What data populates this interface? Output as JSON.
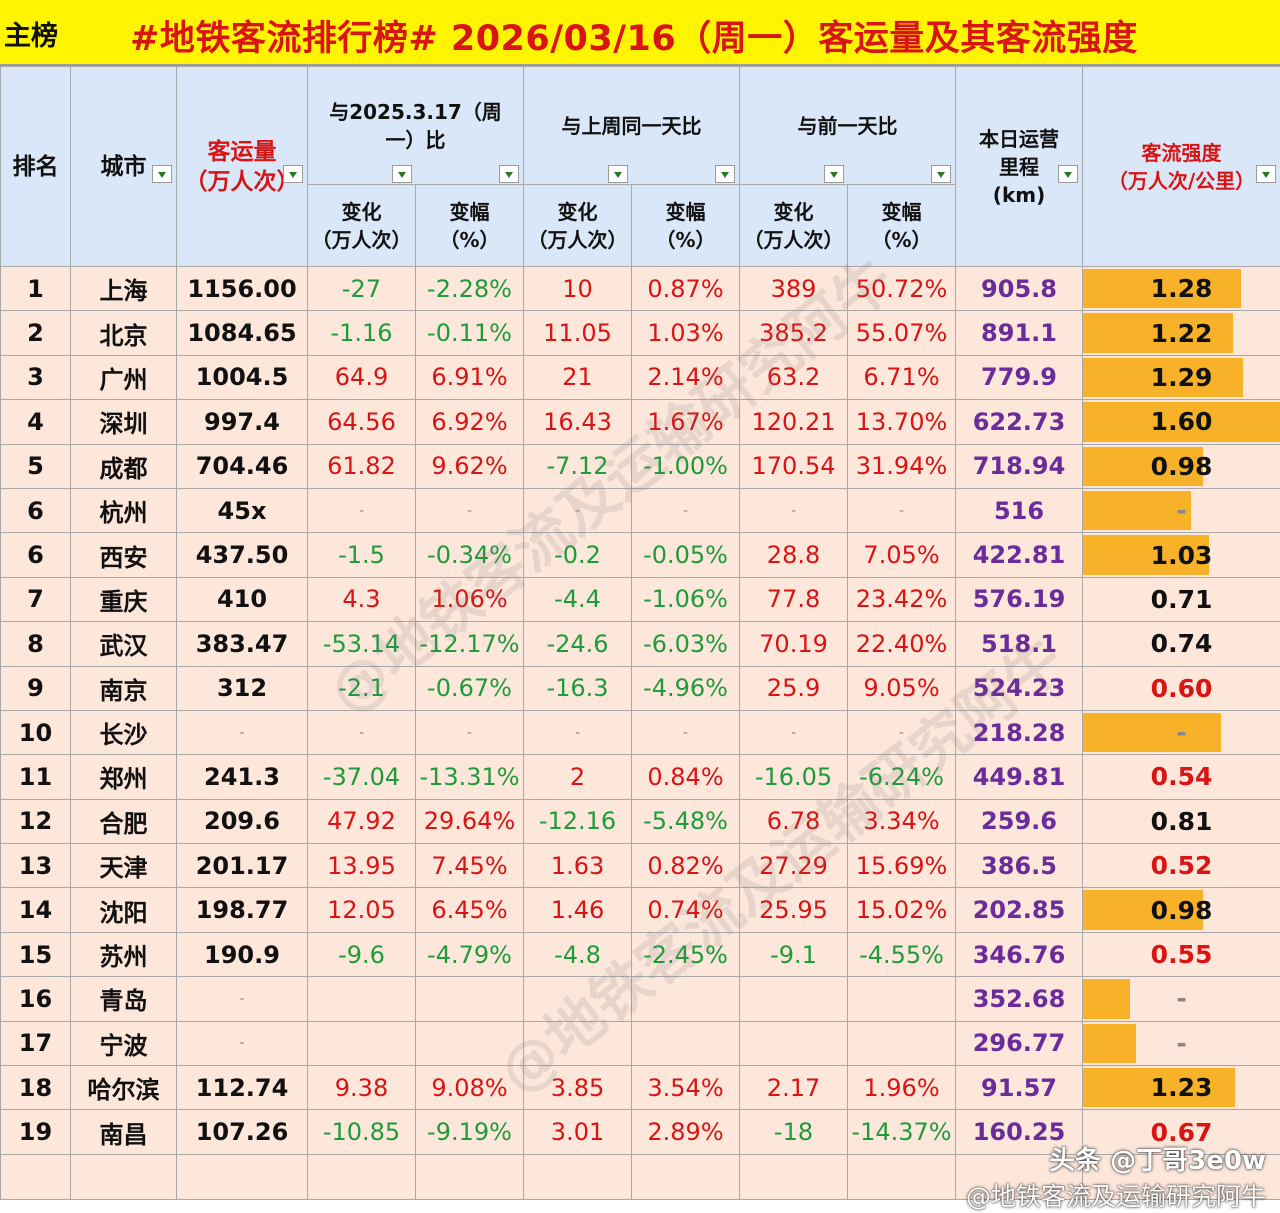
{
  "header": {
    "tag": "主榜",
    "title": "#地铁客流排行榜# 2026/03/16（周一）客运量及其客流强度"
  },
  "columns": {
    "rank": "排名",
    "city": "城市",
    "volume_line1": "客运量",
    "volume_line2": "（万人次）",
    "yoy_line1": "与2025.3.17（周",
    "yoy_line2": "一）比",
    "wow": "与上周同一天比",
    "dod": "与前一天比",
    "mileage_line1": "本日运营",
    "mileage_line2": "里程",
    "mileage_line3": "(km)",
    "intensity_line1": "客流强度",
    "intensity_line2": "（万人次/公里）",
    "change_line1": "变化",
    "change_line2": "（万人次）",
    "pct_line1": "变幅",
    "pct_line2": "（%）"
  },
  "colors": {
    "positive": "#d81414",
    "negative": "#1e9b3b",
    "bar": "#f8b22a",
    "mileage": "#6a2c9a",
    "header_bg": "#d9e7f8",
    "row_bg": "#fde6da",
    "title_bg": "#fff500"
  },
  "rows": [
    {
      "rank": "1",
      "city": "上海",
      "volume": "1156.00",
      "yoy_c": "-27",
      "yoy_p": "-2.28%",
      "wow_c": "10",
      "wow_p": "0.87%",
      "dod_c": "389",
      "dod_p": "50.72%",
      "km": "905.8",
      "intensity": "1.28",
      "bar": 0.8,
      "ired": false
    },
    {
      "rank": "2",
      "city": "北京",
      "volume": "1084.65",
      "yoy_c": "-1.16",
      "yoy_p": "-0.11%",
      "wow_c": "11.05",
      "wow_p": "1.03%",
      "dod_c": "385.2",
      "dod_p": "55.07%",
      "km": "891.1",
      "intensity": "1.22",
      "bar": 0.76,
      "ired": false
    },
    {
      "rank": "3",
      "city": "广州",
      "volume": "1004.5",
      "yoy_c": "64.9",
      "yoy_p": "6.91%",
      "wow_c": "21",
      "wow_p": "2.14%",
      "dod_c": "63.2",
      "dod_p": "6.71%",
      "km": "779.9",
      "intensity": "1.29",
      "bar": 0.81,
      "ired": false
    },
    {
      "rank": "4",
      "city": "深圳",
      "volume": "997.4",
      "yoy_c": "64.56",
      "yoy_p": "6.92%",
      "wow_c": "16.43",
      "wow_p": "1.67%",
      "dod_c": "120.21",
      "dod_p": "13.70%",
      "km": "622.73",
      "intensity": "1.60",
      "bar": 1.0,
      "ired": false
    },
    {
      "rank": "5",
      "city": "成都",
      "volume": "704.46",
      "yoy_c": "61.82",
      "yoy_p": "9.62%",
      "wow_c": "-7.12",
      "wow_p": "-1.00%",
      "dod_c": "170.54",
      "dod_p": "31.94%",
      "km": "718.94",
      "intensity": "0.98",
      "bar": 0.61,
      "ired": false
    },
    {
      "rank": "6",
      "city": "杭州",
      "volume": "45x",
      "yoy_c": "-",
      "yoy_p": "-",
      "wow_c": "-",
      "wow_p": "-",
      "dod_c": "-",
      "dod_p": "-",
      "km": "516",
      "intensity": "-",
      "bar": 0.55,
      "ired": false
    },
    {
      "rank": "6",
      "city": "西安",
      "volume": "437.50",
      "yoy_c": "-1.5",
      "yoy_p": "-0.34%",
      "wow_c": "-0.2",
      "wow_p": "-0.05%",
      "dod_c": "28.8",
      "dod_p": "7.05%",
      "km": "422.81",
      "intensity": "1.03",
      "bar": 0.64,
      "ired": false
    },
    {
      "rank": "7",
      "city": "重庆",
      "volume": "410",
      "yoy_c": "4.3",
      "yoy_p": "1.06%",
      "wow_c": "-4.4",
      "wow_p": "-1.06%",
      "dod_c": "77.8",
      "dod_p": "23.42%",
      "km": "576.19",
      "intensity": "0.71",
      "bar": 0.0,
      "ired": false
    },
    {
      "rank": "8",
      "city": "武汉",
      "volume": "383.47",
      "yoy_c": "-53.14",
      "yoy_p": "-12.17%",
      "wow_c": "-24.6",
      "wow_p": "-6.03%",
      "dod_c": "70.19",
      "dod_p": "22.40%",
      "km": "518.1",
      "intensity": "0.74",
      "bar": 0.0,
      "ired": false
    },
    {
      "rank": "9",
      "city": "南京",
      "volume": "312",
      "yoy_c": "-2.1",
      "yoy_p": "-0.67%",
      "wow_c": "-16.3",
      "wow_p": "-4.96%",
      "dod_c": "25.9",
      "dod_p": "9.05%",
      "km": "524.23",
      "intensity": "0.60",
      "bar": 0.0,
      "ired": true
    },
    {
      "rank": "10",
      "city": "长沙",
      "volume": "-",
      "yoy_c": "-",
      "yoy_p": "-",
      "wow_c": "-",
      "wow_p": "-",
      "dod_c": "-",
      "dod_p": "-",
      "km": "218.28",
      "intensity": "-",
      "bar": 0.7,
      "ired": false
    },
    {
      "rank": "11",
      "city": "郑州",
      "volume": "241.3",
      "yoy_c": "-37.04",
      "yoy_p": "-13.31%",
      "wow_c": "2",
      "wow_p": "0.84%",
      "dod_c": "-16.05",
      "dod_p": "-6.24%",
      "km": "449.81",
      "intensity": "0.54",
      "bar": 0.0,
      "ired": true
    },
    {
      "rank": "12",
      "city": "合肥",
      "volume": "209.6",
      "yoy_c": "47.92",
      "yoy_p": "29.64%",
      "wow_c": "-12.16",
      "wow_p": "-5.48%",
      "dod_c": "6.78",
      "dod_p": "3.34%",
      "km": "259.6",
      "intensity": "0.81",
      "bar": 0.0,
      "ired": false
    },
    {
      "rank": "13",
      "city": "天津",
      "volume": "201.17",
      "yoy_c": "13.95",
      "yoy_p": "7.45%",
      "wow_c": "1.63",
      "wow_p": "0.82%",
      "dod_c": "27.29",
      "dod_p": "15.69%",
      "km": "386.5",
      "intensity": "0.52",
      "bar": 0.0,
      "ired": true
    },
    {
      "rank": "14",
      "city": "沈阳",
      "volume": "198.77",
      "yoy_c": "12.05",
      "yoy_p": "6.45%",
      "wow_c": "1.46",
      "wow_p": "0.74%",
      "dod_c": "25.95",
      "dod_p": "15.02%",
      "km": "202.85",
      "intensity": "0.98",
      "bar": 0.61,
      "ired": false
    },
    {
      "rank": "15",
      "city": "苏州",
      "volume": "190.9",
      "yoy_c": "-9.6",
      "yoy_p": "-4.79%",
      "wow_c": "-4.8",
      "wow_p": "-2.45%",
      "dod_c": "-9.1",
      "dod_p": "-4.55%",
      "km": "346.76",
      "intensity": "0.55",
      "bar": 0.0,
      "ired": true
    },
    {
      "rank": "16",
      "city": "青岛",
      "volume": "-",
      "yoy_c": "",
      "yoy_p": "",
      "wow_c": "",
      "wow_p": "",
      "dod_c": "",
      "dod_p": "",
      "km": "352.68",
      "intensity": "-",
      "bar": 0.24,
      "ired": false
    },
    {
      "rank": "17",
      "city": "宁波",
      "volume": "-",
      "yoy_c": "",
      "yoy_p": "",
      "wow_c": "",
      "wow_p": "",
      "dod_c": "",
      "dod_p": "",
      "km": "296.77",
      "intensity": "-",
      "bar": 0.27,
      "ired": false
    },
    {
      "rank": "18",
      "city": "哈尔滨",
      "volume": "112.74",
      "yoy_c": "9.38",
      "yoy_p": "9.08%",
      "wow_c": "3.85",
      "wow_p": "3.54%",
      "dod_c": "2.17",
      "dod_p": "1.96%",
      "km": "91.57",
      "intensity": "1.23",
      "bar": 0.77,
      "ired": false
    },
    {
      "rank": "19",
      "city": "南昌",
      "volume": "107.26",
      "yoy_c": "-10.85",
      "yoy_p": "-9.19%",
      "wow_c": "3.01",
      "wow_p": "2.89%",
      "dod_c": "-18",
      "dod_p": "-14.37%",
      "km": "160.25",
      "intensity": "0.67",
      "bar": 0.0,
      "ired": true
    }
  ],
  "watermark": "@地铁客流及运输研究阿牛",
  "footer": {
    "platform": "头条 @丁哥3e0w",
    "handle": "@地铁客流及运输研究阿牛"
  }
}
